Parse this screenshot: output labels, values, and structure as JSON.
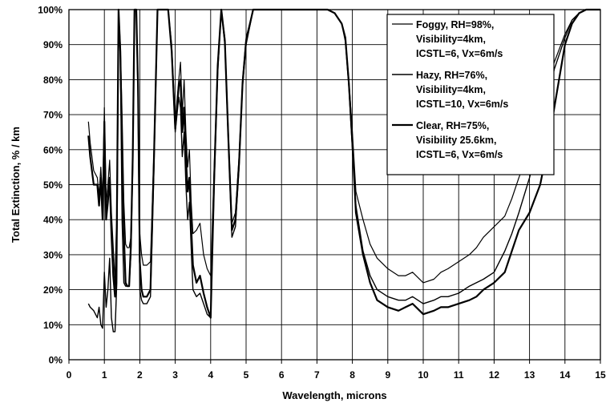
{
  "chart_data": {
    "type": "line",
    "title": "",
    "xlabel": "Wavelength, microns",
    "ylabel": "Total Extinction, % / km",
    "xlim": [
      0,
      15
    ],
    "ylim": [
      0,
      100
    ],
    "x_ticks": [
      0,
      1,
      2,
      3,
      4,
      5,
      6,
      7,
      8,
      9,
      10,
      11,
      12,
      13,
      14,
      15
    ],
    "y_ticks": [
      0,
      10,
      20,
      30,
      40,
      50,
      60,
      70,
      80,
      90,
      100
    ],
    "y_tick_labels": [
      "0%",
      "10%",
      "20%",
      "30%",
      "40%",
      "50%",
      "60%",
      "70%",
      "80%",
      "90%",
      "100%"
    ],
    "grid": true,
    "legend_position": "top-right",
    "colors": {
      "line": "#000000",
      "grid": "#000000",
      "background": "#ffffff"
    },
    "series": [
      {
        "name": "Foggy, RH=98%, Visibility=4km, ICSTL=6, Vx=6m/s",
        "legend_lines": [
          "Foggy, RH=98%,",
          "Visibility=4km,",
          "ICSTL=6, Vx=6m/s"
        ],
        "x": [
          0.55,
          0.6,
          0.7,
          0.8,
          0.85,
          0.9,
          0.95,
          1.0,
          1.05,
          1.1,
          1.15,
          1.2,
          1.25,
          1.3,
          1.35,
          1.4,
          1.45,
          1.5,
          1.55,
          1.6,
          1.65,
          1.7,
          1.75,
          1.8,
          1.85,
          1.9,
          1.95,
          2.0,
          2.05,
          2.1,
          2.2,
          2.3,
          2.4,
          2.5,
          2.6,
          2.7,
          2.8,
          2.9,
          3.0,
          3.1,
          3.15,
          3.2,
          3.25,
          3.3,
          3.35,
          3.4,
          3.45,
          3.5,
          3.6,
          3.7,
          3.8,
          3.9,
          4.0,
          4.1,
          4.2,
          4.3,
          4.4,
          4.5,
          4.6,
          4.7,
          4.8,
          4.9,
          5.0,
          5.2,
          5.5,
          6.0,
          6.5,
          7.0,
          7.3,
          7.5,
          7.7,
          7.8,
          7.9,
          8.0,
          8.1,
          8.3,
          8.5,
          8.7,
          9.0,
          9.3,
          9.5,
          9.7,
          10.0,
          10.3,
          10.5,
          10.7,
          11.0,
          11.3,
          11.5,
          11.7,
          12.0,
          12.3,
          12.5,
          12.7,
          13.0,
          13.3,
          13.5,
          13.7,
          14.0,
          14.2,
          14.4,
          14.6,
          14.8,
          15.0
        ],
        "y": [
          68,
          62,
          54,
          52,
          47,
          55,
          45,
          72,
          44,
          50,
          57,
          42,
          32,
          22,
          40,
          100,
          90,
          70,
          45,
          33,
          32,
          32,
          35,
          60,
          100,
          100,
          80,
          36,
          30,
          27,
          27,
          28,
          60,
          100,
          100,
          100,
          100,
          90,
          68,
          80,
          85,
          70,
          80,
          65,
          55,
          60,
          45,
          36,
          37,
          39,
          30,
          26,
          24,
          55,
          85,
          100,
          92,
          65,
          39,
          42,
          58,
          80,
          92,
          100,
          100,
          100,
          100,
          100,
          100,
          99,
          96,
          92,
          80,
          65,
          48,
          40,
          33,
          29,
          26,
          24,
          24,
          25,
          22,
          23,
          25,
          26,
          28,
          30,
          32,
          35,
          38,
          41,
          46,
          52,
          60,
          70,
          78,
          85,
          93,
          97,
          99,
          100,
          100,
          100
        ]
      },
      {
        "name": "Hazy, RH=76%, Visibility=4km, ICSTL=10, Vx=6m/s",
        "legend_lines": [
          "Hazy, RH=76%,",
          "Visibility=4km,",
          "ICSTL=10, Vx=6m/s"
        ],
        "x": [
          0.55,
          0.6,
          0.7,
          0.8,
          0.85,
          0.9,
          0.95,
          1.0,
          1.05,
          1.1,
          1.15,
          1.2,
          1.25,
          1.3,
          1.35,
          1.4,
          1.45,
          1.5,
          1.55,
          1.6,
          1.65,
          1.7,
          1.75,
          1.8,
          1.85,
          1.9,
          1.95,
          2.0,
          2.05,
          2.1,
          2.2,
          2.3,
          2.4,
          2.5,
          2.6,
          2.7,
          2.8,
          2.9,
          3.0,
          3.1,
          3.15,
          3.2,
          3.25,
          3.3,
          3.35,
          3.4,
          3.45,
          3.5,
          3.6,
          3.7,
          3.8,
          3.9,
          4.0,
          4.1,
          4.2,
          4.3,
          4.4,
          4.5,
          4.6,
          4.7,
          4.8,
          4.9,
          5.0,
          5.2,
          5.5,
          6.0,
          6.5,
          7.0,
          7.3,
          7.5,
          7.7,
          7.8,
          7.9,
          8.0,
          8.1,
          8.3,
          8.5,
          8.7,
          9.0,
          9.3,
          9.5,
          9.7,
          10.0,
          10.3,
          10.5,
          10.7,
          11.0,
          11.3,
          11.5,
          11.7,
          12.0,
          12.3,
          12.5,
          12.7,
          13.0,
          13.3,
          13.5,
          13.7,
          14.0,
          14.2,
          14.4,
          14.6,
          14.8,
          15.0
        ],
        "y": [
          16,
          15,
          14,
          12,
          15,
          10,
          9,
          25,
          15,
          20,
          29,
          12,
          8,
          8,
          22,
          100,
          88,
          40,
          22,
          21,
          21,
          21,
          30,
          55,
          100,
          100,
          75,
          20,
          17,
          16,
          16,
          18,
          55,
          100,
          100,
          100,
          100,
          88,
          65,
          75,
          72,
          58,
          65,
          50,
          40,
          45,
          32,
          20,
          18,
          19,
          16,
          13,
          12,
          50,
          82,
          100,
          90,
          62,
          35,
          38,
          55,
          78,
          90,
          100,
          100,
          100,
          100,
          100,
          100,
          99,
          96,
          91,
          78,
          60,
          44,
          31,
          24,
          20,
          18,
          17,
          17,
          18,
          16,
          17,
          18,
          18,
          19,
          21,
          22,
          23,
          25,
          31,
          36,
          42,
          52,
          64,
          74,
          83,
          92,
          97,
          99,
          100,
          100,
          100
        ]
      },
      {
        "name": "Clear, RH=75%, Visibility 25.6km, ICSTL=6, Vx=6m/s",
        "legend_lines": [
          "Clear, RH=75%,",
          "Visibility 25.6km,",
          "ICSTL=6, Vx=6m/s"
        ],
        "x": [
          0.55,
          0.6,
          0.7,
          0.8,
          0.85,
          0.9,
          0.95,
          1.0,
          1.05,
          1.1,
          1.15,
          1.2,
          1.25,
          1.3,
          1.35,
          1.4,
          1.45,
          1.5,
          1.55,
          1.6,
          1.65,
          1.7,
          1.75,
          1.8,
          1.85,
          1.9,
          1.95,
          2.0,
          2.05,
          2.1,
          2.2,
          2.3,
          2.4,
          2.5,
          2.6,
          2.7,
          2.8,
          2.9,
          3.0,
          3.1,
          3.15,
          3.2,
          3.25,
          3.3,
          3.35,
          3.4,
          3.45,
          3.5,
          3.6,
          3.7,
          3.8,
          3.9,
          4.0,
          4.1,
          4.2,
          4.3,
          4.4,
          4.5,
          4.6,
          4.7,
          4.8,
          4.9,
          5.0,
          5.2,
          5.5,
          6.0,
          6.5,
          7.0,
          7.3,
          7.5,
          7.7,
          7.8,
          7.9,
          8.0,
          8.1,
          8.3,
          8.5,
          8.7,
          9.0,
          9.3,
          9.5,
          9.7,
          10.0,
          10.3,
          10.5,
          10.7,
          11.0,
          11.3,
          11.5,
          11.7,
          12.0,
          12.3,
          12.5,
          12.7,
          13.0,
          13.3,
          13.5,
          13.7,
          14.0,
          14.2,
          14.4,
          14.6,
          14.8,
          15.0
        ],
        "y": [
          64,
          58,
          50,
          50,
          44,
          52,
          40,
          68,
          40,
          45,
          52,
          36,
          24,
          18,
          38,
          100,
          88,
          60,
          36,
          22,
          21,
          21,
          33,
          58,
          100,
          100,
          78,
          28,
          20,
          18,
          18,
          20,
          58,
          100,
          100,
          100,
          100,
          88,
          66,
          78,
          80,
          65,
          72,
          58,
          48,
          52,
          38,
          27,
          22,
          24,
          19,
          15,
          12,
          52,
          84,
          100,
          91,
          63,
          37,
          40,
          56,
          79,
          91,
          100,
          100,
          100,
          100,
          100,
          100,
          99,
          96,
          92,
          79,
          62,
          42,
          30,
          22,
          17,
          15,
          14,
          15,
          16,
          13,
          14,
          15,
          15,
          16,
          17,
          18,
          20,
          22,
          25,
          31,
          37,
          42,
          50,
          60,
          72,
          90,
          96,
          99,
          100,
          100,
          100
        ]
      }
    ]
  }
}
